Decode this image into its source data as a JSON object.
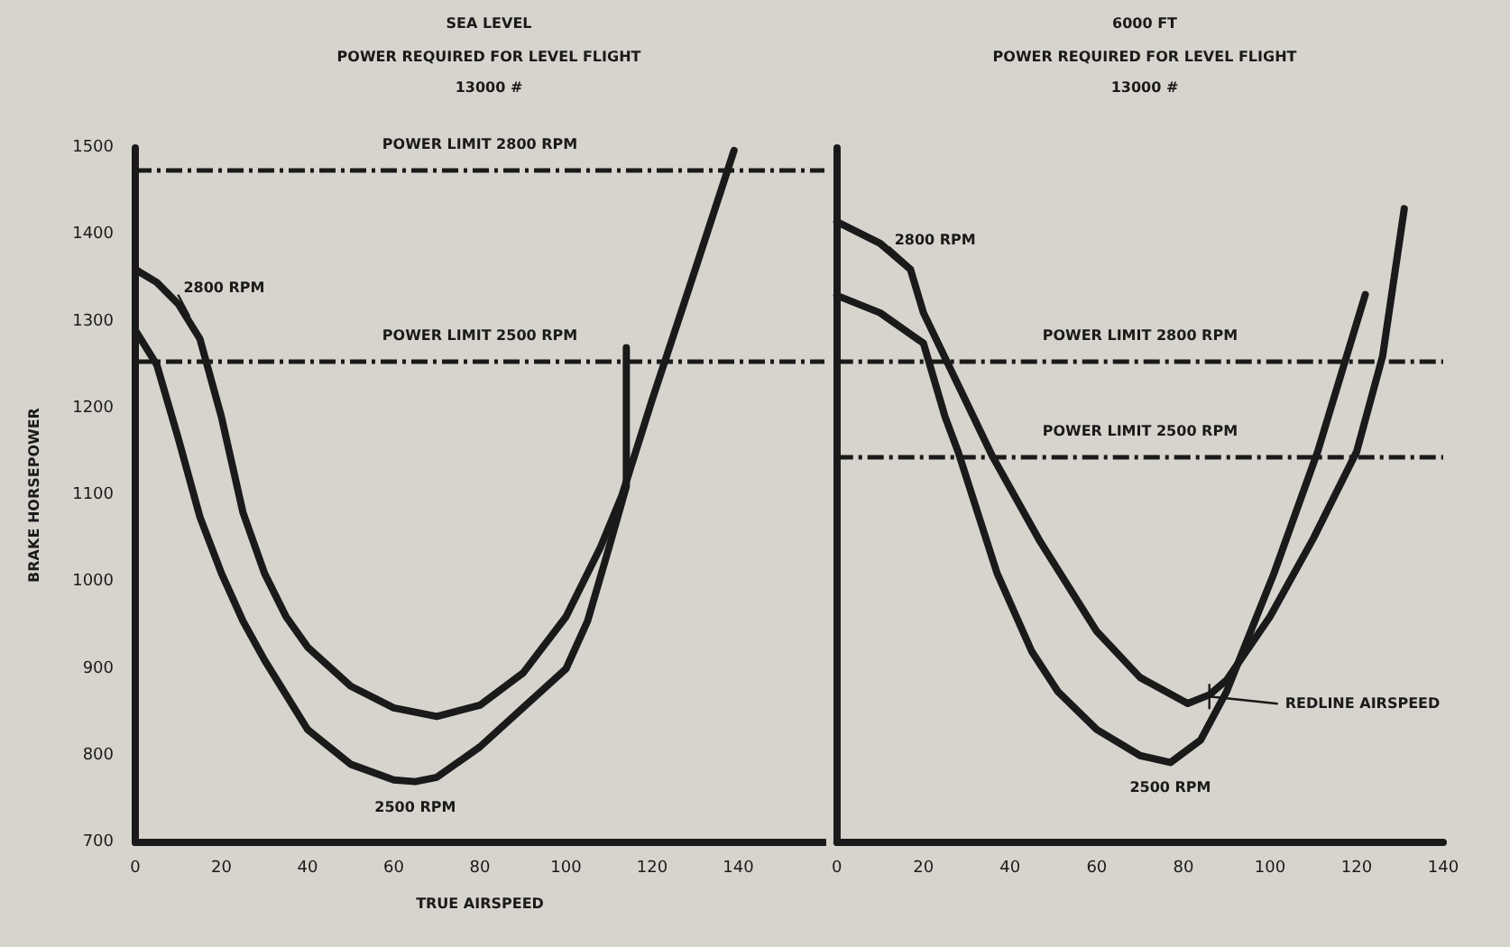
{
  "chart_data": [
    {
      "type": "line",
      "title": "SEA LEVEL",
      "subtitle": "POWER REQUIRED FOR LEVEL FLIGHT\n13000 #",
      "xlabel": "TRUE AIRSPEED",
      "ylabel": "BRAKE HORSEPOWER",
      "series": [
        {
          "name": "2800 RPM",
          "color": "#1a1a1a",
          "x": [
            0,
            5,
            10,
            15,
            20,
            25,
            30,
            35,
            40,
            50,
            60,
            70,
            80,
            90,
            100,
            108,
            113,
            120,
            130,
            139
          ],
          "values": [
            1360,
            1345,
            1320,
            1280,
            1190,
            1080,
            1010,
            960,
            925,
            880,
            855,
            845,
            858,
            895,
            960,
            1040,
            1100,
            1210,
            1360,
            1497
          ]
        },
        {
          "name": "2500 RPM",
          "color": "#1a1a1a",
          "x": [
            0,
            5,
            10,
            15,
            20,
            25,
            30,
            40,
            50,
            60,
            65,
            70,
            80,
            90,
            100,
            105,
            110,
            114,
            114
          ],
          "values": [
            1290,
            1250,
            1165,
            1075,
            1010,
            955,
            910,
            830,
            790,
            772,
            770,
            775,
            810,
            855,
            900,
            955,
            1040,
            1110,
            1270
          ]
        }
      ],
      "xlim": [
        0,
        160
      ],
      "xticks": [
        0,
        20,
        40,
        60,
        80,
        100,
        120,
        140
      ],
      "ylim": [
        700,
        1500
      ],
      "yticks": [
        700,
        800,
        900,
        1000,
        1100,
        1200,
        1300,
        1400,
        1500
      ],
      "ref_lines": [
        {
          "axis": "y",
          "value": 1475,
          "label": "POWER LIMIT 2800 RPM",
          "color": "#1a1a1a",
          "line_style": "dashed"
        },
        {
          "axis": "y",
          "value": 1255,
          "label": "POWER LIMIT 2500 RPM",
          "color": "#1a1a1a",
          "line_style": "dashed"
        }
      ],
      "grid": false,
      "legend": false,
      "marker": "none",
      "line_style": "solid"
    },
    {
      "type": "line",
      "title": "6000 FT",
      "subtitle": "POWER REQUIRED FOR LEVEL FLIGHT\n13000 #",
      "series": [
        {
          "name": "2800 RPM",
          "color": "#1a1a1a",
          "x": [
            0,
            10,
            17,
            20,
            28,
            36,
            47,
            60,
            70,
            81,
            86,
            90,
            100,
            110,
            120,
            126,
            131
          ],
          "values": [
            1415,
            1390,
            1360,
            1310,
            1227,
            1144,
            1046,
            943,
            890,
            860,
            870,
            887,
            960,
            1050,
            1150,
            1260,
            1430
          ]
        },
        {
          "name": "2500 RPM",
          "color": "#1a1a1a",
          "x": [
            0,
            10,
            20,
            25,
            28,
            37,
            45,
            51,
            60,
            70,
            77,
            84,
            90,
            101,
            111,
            122
          ],
          "values": [
            1330,
            1310,
            1275,
            1190,
            1150,
            1010,
            920,
            874,
            830,
            800,
            792,
            818,
            874,
            1011,
            1150,
            1331
          ]
        }
      ],
      "xlim": [
        0,
        140
      ],
      "xticks": [
        0,
        20,
        40,
        60,
        80,
        100,
        120,
        140
      ],
      "ylim": [
        700,
        1500
      ],
      "yticks": [
        700,
        800,
        900,
        1000,
        1100,
        1200,
        1300,
        1400,
        1500
      ],
      "tick_labels": "x",
      "ref_lines": [
        {
          "axis": "y",
          "value": 1255,
          "label": "POWER LIMIT 2800 RPM",
          "color": "#1a1a1a",
          "line_style": "dashed"
        },
        {
          "axis": "y",
          "value": 1145,
          "label": "POWER LIMIT 2500 RPM",
          "color": "#1a1a1a",
          "line_style": "dashed"
        }
      ],
      "annotations": [
        {
          "text": "REDLINE AIRSPEED",
          "x": 86,
          "y": 868
        }
      ],
      "grid": false,
      "legend": false,
      "marker": "none",
      "line_style": "solid"
    }
  ]
}
